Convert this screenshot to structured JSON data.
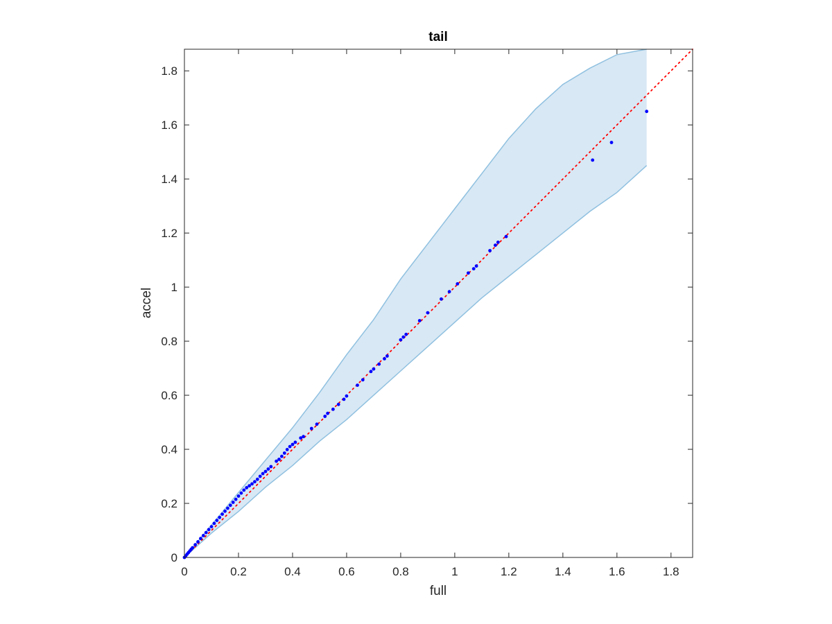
{
  "chart_data": {
    "type": "scatter",
    "title": "tail",
    "xlabel": "full",
    "ylabel": "accel",
    "xlim": [
      0,
      1.88
    ],
    "ylim": [
      0,
      1.88
    ],
    "grid": false,
    "legend": "none",
    "xticks": [
      "0",
      "0.2",
      "0.4",
      "0.6",
      "0.8",
      "1",
      "1.2",
      "1.4",
      "1.6",
      "1.8"
    ],
    "yticks": [
      "0",
      "0.2",
      "0.4",
      "0.6",
      "0.8",
      "1",
      "1.2",
      "1.4",
      "1.6",
      "1.8"
    ],
    "xtick_values": [
      0,
      0.2,
      0.4,
      0.6,
      0.8,
      1,
      1.2,
      1.4,
      1.6,
      1.8
    ],
    "ytick_values": [
      0,
      0.2,
      0.4,
      0.6,
      0.8,
      1,
      1.2,
      1.4,
      1.6,
      1.8
    ],
    "colors": {
      "points": "#0000ff",
      "reference_line": "#ff0000",
      "band_fill": "#d8e8f4",
      "band_edge": "#8fc0e0",
      "axes": "#262626"
    },
    "reference_line": {
      "x": [
        0,
        1.88
      ],
      "y": [
        0,
        1.88
      ]
    },
    "band": {
      "x": [
        0,
        0.1,
        0.2,
        0.3,
        0.4,
        0.5,
        0.6,
        0.7,
        0.8,
        0.9,
        1.0,
        1.1,
        1.2,
        1.3,
        1.4,
        1.5,
        1.6,
        1.71
      ],
      "upper": [
        0,
        0.12,
        0.24,
        0.36,
        0.48,
        0.61,
        0.75,
        0.88,
        1.03,
        1.16,
        1.29,
        1.42,
        1.55,
        1.66,
        1.75,
        1.81,
        1.86,
        1.88
      ],
      "lower": [
        0,
        0.09,
        0.17,
        0.26,
        0.34,
        0.43,
        0.51,
        0.6,
        0.69,
        0.78,
        0.87,
        0.96,
        1.04,
        1.12,
        1.2,
        1.28,
        1.35,
        1.45
      ]
    },
    "points": {
      "x": [
        0.0,
        0.005,
        0.01,
        0.015,
        0.02,
        0.025,
        0.03,
        0.04,
        0.05,
        0.06,
        0.07,
        0.08,
        0.09,
        0.1,
        0.11,
        0.12,
        0.13,
        0.14,
        0.15,
        0.16,
        0.17,
        0.18,
        0.19,
        0.2,
        0.21,
        0.22,
        0.23,
        0.24,
        0.25,
        0.26,
        0.27,
        0.28,
        0.29,
        0.3,
        0.31,
        0.32,
        0.34,
        0.35,
        0.36,
        0.37,
        0.38,
        0.39,
        0.4,
        0.41,
        0.43,
        0.44,
        0.47,
        0.49,
        0.52,
        0.53,
        0.55,
        0.57,
        0.59,
        0.6,
        0.64,
        0.66,
        0.69,
        0.7,
        0.72,
        0.74,
        0.75,
        0.8,
        0.81,
        0.82,
        0.87,
        0.9,
        0.95,
        0.98,
        1.01,
        1.05,
        1.07,
        1.08,
        1.13,
        1.15,
        1.16,
        1.19,
        1.51,
        1.58,
        1.71
      ],
      "y": [
        0.0,
        0.006,
        0.012,
        0.018,
        0.024,
        0.03,
        0.036,
        0.047,
        0.058,
        0.07,
        0.081,
        0.092,
        0.103,
        0.114,
        0.126,
        0.137,
        0.148,
        0.16,
        0.171,
        0.182,
        0.193,
        0.204,
        0.215,
        0.227,
        0.238,
        0.249,
        0.258,
        0.265,
        0.272,
        0.28,
        0.289,
        0.3,
        0.31,
        0.318,
        0.327,
        0.336,
        0.356,
        0.363,
        0.374,
        0.386,
        0.399,
        0.41,
        0.418,
        0.426,
        0.442,
        0.447,
        0.477,
        0.493,
        0.522,
        0.533,
        0.548,
        0.566,
        0.585,
        0.597,
        0.637,
        0.657,
        0.688,
        0.697,
        0.715,
        0.735,
        0.745,
        0.805,
        0.815,
        0.825,
        0.876,
        0.905,
        0.956,
        0.983,
        1.012,
        1.052,
        1.068,
        1.078,
        1.135,
        1.155,
        1.166,
        1.187,
        1.47,
        1.535,
        1.65
      ]
    }
  }
}
